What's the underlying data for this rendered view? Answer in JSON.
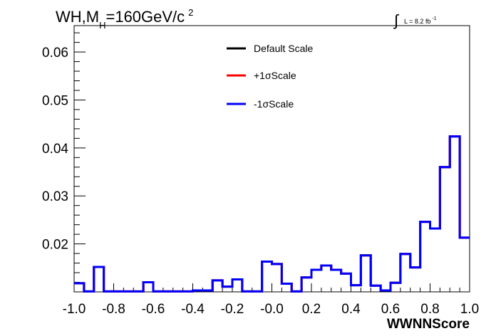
{
  "chart_data": {
    "type": "line",
    "style": "step-histogram",
    "title_prefix": "WH,M",
    "title_sub": "H",
    "title_mid": "=160GeV/c",
    "title_sup": "2",
    "lumi_prefix": "L = 8.2 fb",
    "lumi_sup": "-1",
    "xlabel": "WWNNScore",
    "ylabel": "",
    "xlim": [
      -1.0,
      1.0
    ],
    "ylim": [
      0.01,
      0.0655
    ],
    "x_ticks": [
      "-1.0",
      "-0.8",
      "-0.6",
      "-0.4",
      "-0.2",
      "-0.0",
      "0.2",
      "0.4",
      "0.6",
      "0.8",
      "1.0"
    ],
    "y_ticks": [
      "0.02",
      "0.03",
      "0.04",
      "0.05",
      "0.06"
    ],
    "grid": false,
    "legend_position": "top-center",
    "bin_edges": [
      -1.0,
      -0.95,
      -0.9,
      -0.85,
      -0.8,
      -0.75,
      -0.7,
      -0.65,
      -0.6,
      -0.55,
      -0.5,
      -0.45,
      -0.4,
      -0.35,
      -0.3,
      -0.25,
      -0.2,
      -0.15,
      -0.1,
      -0.05,
      0.0,
      0.05,
      0.1,
      0.15,
      0.2,
      0.25,
      0.3,
      0.35,
      0.4,
      0.45,
      0.5,
      0.55,
      0.6,
      0.65,
      0.7,
      0.75,
      0.8,
      0.85,
      0.9,
      0.95,
      1.0
    ],
    "series": [
      {
        "name": "Default Scale",
        "color": "#000000",
        "values": [
          0.0118,
          0.0101,
          0.0152,
          0.0101,
          0.0101,
          0.0101,
          0.0101,
          0.012,
          0.0101,
          0.0101,
          0.0101,
          0.0101,
          0.0103,
          0.0103,
          0.0124,
          0.0111,
          0.0126,
          0.0101,
          0.0101,
          0.0163,
          0.0158,
          0.0117,
          0.0101,
          0.013,
          0.0146,
          0.0155,
          0.0146,
          0.0138,
          0.0114,
          0.0176,
          0.0113,
          0.0103,
          0.0119,
          0.0179,
          0.0151,
          0.0246,
          0.0232,
          0.036,
          0.0424,
          0.0213
        ]
      },
      {
        "name": "+1σScale",
        "color": "#ff0000",
        "values": [
          0.0118,
          0.0101,
          0.0152,
          0.0101,
          0.0101,
          0.0101,
          0.0101,
          0.012,
          0.0101,
          0.0101,
          0.0101,
          0.0101,
          0.0103,
          0.0103,
          0.0124,
          0.0111,
          0.0126,
          0.0101,
          0.0101,
          0.0163,
          0.0158,
          0.0117,
          0.0101,
          0.013,
          0.0146,
          0.0155,
          0.0146,
          0.0138,
          0.0114,
          0.0176,
          0.0113,
          0.0103,
          0.0119,
          0.0179,
          0.0151,
          0.0246,
          0.0232,
          0.036,
          0.0424,
          0.0213
        ]
      },
      {
        "name": "-1σScale",
        "color": "#0000ff",
        "values": [
          0.0118,
          0.0101,
          0.0152,
          0.0101,
          0.0101,
          0.0101,
          0.0101,
          0.012,
          0.0101,
          0.0101,
          0.0101,
          0.0101,
          0.0103,
          0.0103,
          0.0124,
          0.0111,
          0.0126,
          0.0101,
          0.0101,
          0.0163,
          0.0158,
          0.0117,
          0.0101,
          0.013,
          0.0146,
          0.0155,
          0.0146,
          0.0138,
          0.0114,
          0.0176,
          0.0113,
          0.0103,
          0.0119,
          0.0179,
          0.0151,
          0.0246,
          0.0232,
          0.036,
          0.0424,
          0.0213
        ]
      }
    ]
  }
}
